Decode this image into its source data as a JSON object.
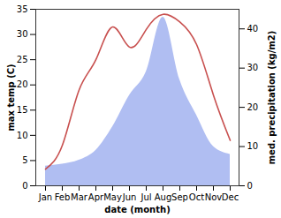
{
  "chart_data": {
    "type": "line",
    "categories": [
      "Jan",
      "Feb",
      "Mar",
      "Apr",
      "May",
      "Jun",
      "Jul",
      "Aug",
      "Sep",
      "Oct",
      "Nov",
      "Dec"
    ],
    "x_label": "date (month)",
    "y_label": "max temp (C)",
    "y2_label": "med. precipitation (kg/m2)",
    "ylim": [
      0,
      35
    ],
    "yticks": [
      0,
      5,
      10,
      15,
      20,
      25,
      30,
      35
    ],
    "y2lim": [
      0,
      45
    ],
    "y2ticks": [
      0,
      10,
      20,
      30,
      40
    ],
    "series": [
      {
        "type": "area",
        "axis": "y2",
        "color": "#b0bef2",
        "values": [
          5,
          5.5,
          6.5,
          9,
          15,
          23,
          29,
          43,
          27,
          18,
          10,
          8
        ]
      },
      {
        "type": "line",
        "color": "#c8504f",
        "values": [
          3.3,
          8,
          19,
          25,
          31.5,
          27.5,
          31,
          34,
          32.5,
          28,
          18,
          9
        ]
      }
    ]
  }
}
